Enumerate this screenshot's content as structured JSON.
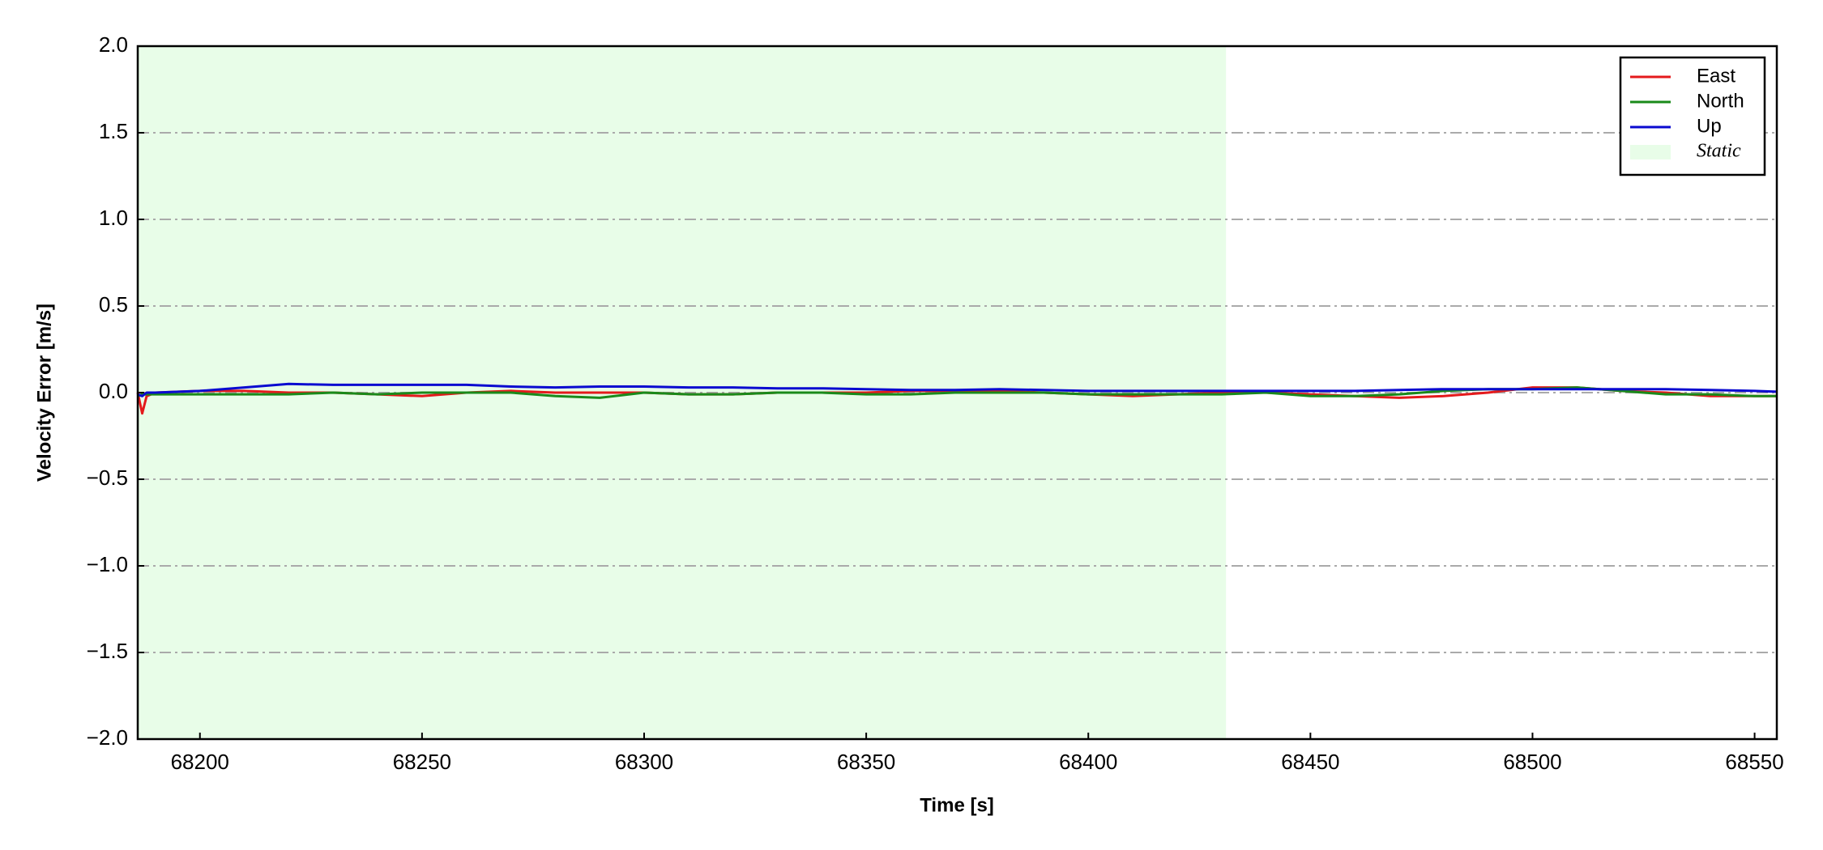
{
  "chart_data": {
    "type": "line",
    "xlabel": "Time [s]",
    "ylabel": "Velocity Error [m/s]",
    "x": [
      68186,
      68187,
      68188,
      68190,
      68200,
      68210,
      68220,
      68230,
      68240,
      68250,
      68260,
      68270,
      68280,
      68290,
      68300,
      68310,
      68320,
      68330,
      68340,
      68350,
      68360,
      68370,
      68380,
      68390,
      68400,
      68410,
      68420,
      68430,
      68440,
      68450,
      68460,
      68470,
      68480,
      68490,
      68500,
      68510,
      68520,
      68530,
      68540,
      68550,
      68555
    ],
    "series": [
      {
        "name": "East",
        "color": "#e41a1c",
        "values": [
          0,
          -0.12,
          -0.02,
          0,
          0.01,
          0.01,
          0.0,
          0.0,
          -0.01,
          -0.02,
          0.0,
          0.01,
          0.0,
          0.0,
          0.0,
          -0.01,
          -0.01,
          0.0,
          0.0,
          0.0,
          0.01,
          0.01,
          0.01,
          0.0,
          -0.01,
          -0.02,
          -0.01,
          0.0,
          0.0,
          -0.01,
          -0.02,
          -0.03,
          -0.02,
          0.0,
          0.03,
          0.03,
          0.01,
          0.0,
          -0.02,
          -0.02,
          -0.02
        ]
      },
      {
        "name": "North",
        "color": "#1a8a1a",
        "values": [
          -0.02,
          -0.01,
          -0.01,
          -0.01,
          -0.01,
          -0.01,
          -0.01,
          0.0,
          -0.01,
          0.0,
          0.0,
          0.0,
          -0.02,
          -0.03,
          0.0,
          -0.01,
          -0.01,
          0.0,
          0.0,
          -0.01,
          -0.01,
          0.0,
          0.0,
          0.0,
          -0.01,
          -0.01,
          -0.01,
          -0.01,
          0.0,
          -0.02,
          -0.02,
          -0.01,
          0.01,
          0.02,
          0.02,
          0.03,
          0.01,
          -0.01,
          -0.01,
          -0.02,
          -0.02
        ]
      },
      {
        "name": "Up",
        "color": "#0a0ad0",
        "values": [
          -0.01,
          -0.02,
          0.0,
          0.0,
          0.01,
          0.03,
          0.05,
          0.045,
          0.045,
          0.045,
          0.045,
          0.035,
          0.03,
          0.035,
          0.035,
          0.03,
          0.03,
          0.025,
          0.025,
          0.02,
          0.015,
          0.015,
          0.02,
          0.015,
          0.01,
          0.01,
          0.01,
          0.01,
          0.01,
          0.01,
          0.01,
          0.015,
          0.02,
          0.02,
          0.02,
          0.02,
          0.02,
          0.02,
          0.015,
          0.01,
          0.005
        ]
      }
    ],
    "spans": [
      {
        "name": "Static",
        "start": 68186,
        "end": 68431,
        "color": "#e8fde8"
      }
    ],
    "xlim": [
      68186,
      68555
    ],
    "xticks": [
      68200,
      68250,
      68300,
      68350,
      68400,
      68450,
      68500,
      68550
    ],
    "ylim": [
      -2,
      2
    ],
    "yticks": [
      {
        "value": -2,
        "label": "−2.0"
      },
      {
        "value": -1.5,
        "label": "−1.5"
      },
      {
        "value": -1,
        "label": "−1.0"
      },
      {
        "value": -0.5,
        "label": "−0.5"
      },
      {
        "value": 0,
        "label": "0.0"
      },
      {
        "value": 0.5,
        "label": "0.5"
      },
      {
        "value": 1,
        "label": "1.0"
      },
      {
        "value": 1.5,
        "label": "1.5"
      },
      {
        "value": 2,
        "label": "2.0"
      }
    ],
    "grid": "y",
    "legend": "upper right"
  }
}
